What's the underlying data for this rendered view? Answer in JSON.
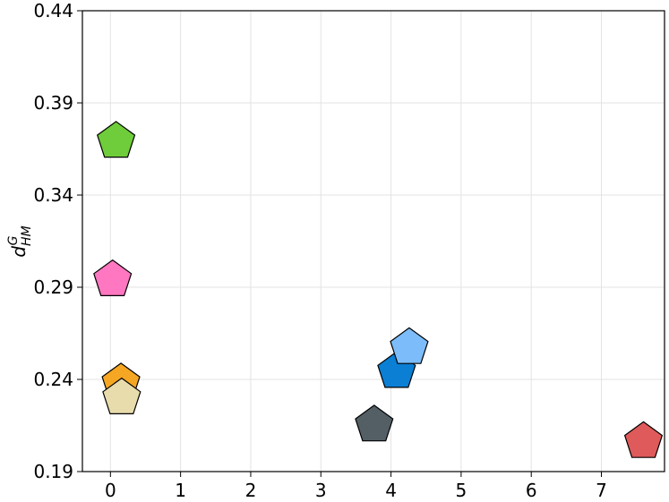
{
  "chart_data": {
    "type": "scatter",
    "title": "",
    "xlabel": "",
    "ylabel": {
      "base": "d",
      "sup": "G",
      "sub": "HM"
    },
    "xlim": [
      -0.4,
      7.9
    ],
    "ylim": [
      0.19,
      0.44
    ],
    "xticks": [
      0,
      1,
      2,
      3,
      4,
      5,
      6,
      7
    ],
    "yticks": [
      0.19,
      0.24,
      0.29,
      0.34,
      0.39,
      0.44
    ],
    "ytick_labels": [
      "0.19",
      "0.24",
      "0.29",
      "0.34",
      "0.39",
      "0.44"
    ],
    "grid": true,
    "marker": "pentagon",
    "points": [
      {
        "x": 0.08,
        "y": 0.3692,
        "color": "#6fcc3a"
      },
      {
        "x": 0.03,
        "y": 0.2941,
        "color": "#ff77c0"
      },
      {
        "x": 0.15,
        "y": 0.2381,
        "color": "#f5a623"
      },
      {
        "x": 0.16,
        "y": 0.23,
        "color": "#e8dbac"
      },
      {
        "x": 4.08,
        "y": 0.2443,
        "color": "#0a7fd4"
      },
      {
        "x": 4.26,
        "y": 0.2573,
        "color": "#7cbcfa"
      },
      {
        "x": 3.76,
        "y": 0.2153,
        "color": "#535f65"
      },
      {
        "x": 7.6,
        "y": 0.2063,
        "color": "#df5a5a"
      }
    ]
  }
}
